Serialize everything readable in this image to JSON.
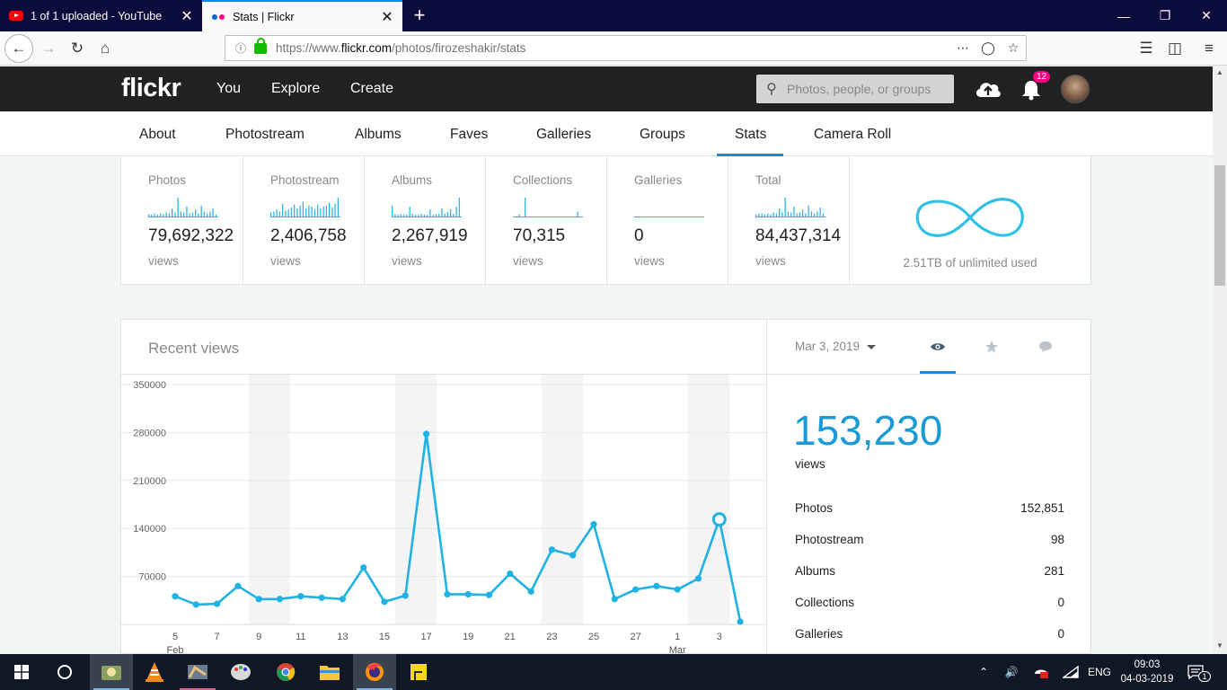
{
  "browser": {
    "tabs": [
      {
        "title": "1 of 1 uploaded - YouTube",
        "active": false
      },
      {
        "title": "Stats | Flickr",
        "active": true
      }
    ],
    "url_prefix": "https://www.",
    "url_domain": "flickr.com",
    "url_path": "/photos/firozeshakir/stats"
  },
  "header": {
    "logo": "flickr",
    "nav": [
      "You",
      "Explore",
      "Create"
    ],
    "search_placeholder": "Photos, people, or groups",
    "notification_count": "12"
  },
  "subnav": {
    "items": [
      "About",
      "Photostream",
      "Albums",
      "Faves",
      "Galleries",
      "Groups",
      "Stats",
      "Camera Roll"
    ],
    "active": "Stats"
  },
  "stats_cards": [
    {
      "label": "Photos",
      "value": "79,692,322",
      "unit": "views",
      "spark": [
        3,
        3,
        4,
        3,
        4,
        3,
        5,
        4,
        9,
        5,
        20,
        6,
        5,
        11,
        4,
        5,
        8,
        4,
        12,
        6,
        4,
        6,
        9,
        3
      ]
    },
    {
      "label": "Photostream",
      "value": "2,406,758",
      "unit": "views",
      "spark": [
        5,
        6,
        8,
        6,
        14,
        7,
        8,
        10,
        13,
        9,
        12,
        16,
        9,
        12,
        11,
        8,
        13,
        9,
        11,
        12,
        15,
        10,
        14,
        20
      ]
    },
    {
      "label": "Albums",
      "value": "2,267,919",
      "unit": "views",
      "spark": [
        13,
        4,
        3,
        4,
        3,
        3,
        12,
        4,
        3,
        3,
        4,
        3,
        3,
        9,
        3,
        4,
        4,
        10,
        4,
        6,
        9,
        4,
        12,
        22
      ]
    },
    {
      "label": "Collections",
      "value": "70,315",
      "unit": "views",
      "spark": [
        0,
        0,
        3,
        0,
        20,
        0,
        0,
        0,
        0,
        0,
        0,
        0,
        0,
        0,
        0,
        0,
        0,
        0,
        0,
        0,
        0,
        0,
        6,
        0
      ]
    },
    {
      "label": "Galleries",
      "value": "0",
      "unit": "views",
      "spark": [
        0,
        0,
        0,
        0,
        0,
        0,
        0,
        0,
        0,
        0,
        0,
        0,
        0,
        0,
        0,
        0,
        0,
        0,
        0,
        0,
        0,
        0,
        0,
        0
      ]
    },
    {
      "label": "Total",
      "value": "84,437,314",
      "unit": "views",
      "spark": [
        3,
        4,
        4,
        3,
        4,
        3,
        5,
        4,
        9,
        5,
        20,
        6,
        5,
        11,
        4,
        5,
        8,
        4,
        12,
        6,
        4,
        6,
        10,
        4
      ]
    }
  ],
  "storage": {
    "text": "2.51TB of unlimited used"
  },
  "recent_views": {
    "title": "Recent views",
    "selected_date": "Mar 3, 2019",
    "total": "153,230",
    "total_unit": "views",
    "breakdown": [
      {
        "label": "Photos",
        "value": "152,851"
      },
      {
        "label": "Photostream",
        "value": "98"
      },
      {
        "label": "Albums",
        "value": "281"
      },
      {
        "label": "Collections",
        "value": "0"
      },
      {
        "label": "Galleries",
        "value": "0"
      }
    ]
  },
  "chart_data": {
    "type": "line",
    "title": "Recent views",
    "y_ticks": [
      "350000",
      "280000",
      "210000",
      "140000",
      "70000"
    ],
    "ylim": [
      0,
      350000
    ],
    "x_tick_labels": [
      "5",
      "7",
      "9",
      "11",
      "13",
      "15",
      "17",
      "19",
      "21",
      "23",
      "25",
      "27",
      "1",
      "3"
    ],
    "x_month_labels": [
      {
        "label": "Feb",
        "at": "5"
      },
      {
        "label": "Mar",
        "at": "1"
      }
    ],
    "x": [
      "Feb 5",
      "Feb 6",
      "Feb 7",
      "Feb 8",
      "Feb 9",
      "Feb 10",
      "Feb 11",
      "Feb 12",
      "Feb 13",
      "Feb 14",
      "Feb 15",
      "Feb 16",
      "Feb 17",
      "Feb 18",
      "Feb 19",
      "Feb 20",
      "Feb 21",
      "Feb 22",
      "Feb 23",
      "Feb 24",
      "Feb 25",
      "Feb 26",
      "Feb 27",
      "Feb 28",
      "Mar 1",
      "Mar 2",
      "Mar 3",
      "Mar 4"
    ],
    "series": [
      {
        "values": [
          41000,
          29000,
          30000,
          56000,
          37000,
          37000,
          41000,
          39000,
          37000,
          83000,
          33000,
          42000,
          278000,
          44000,
          44000,
          43000,
          74000,
          48000,
          109000,
          101000,
          146000,
          37000,
          51000,
          56000,
          51000,
          67000,
          153230,
          4000
        ]
      }
    ],
    "highlighted_index": 26,
    "weekend_bands": [
      "Feb 9-10",
      "Feb 16-17",
      "Feb 23-24",
      "Mar 2-3"
    ],
    "color": "#1fb2e3",
    "grid": true
  },
  "colors": {
    "accent": "#128fdc",
    "line": "#1fb2e3",
    "header_bg": "#212124",
    "badge": "#ff0084"
  },
  "taskbar": {
    "time": "09:03",
    "date": "04-03-2019",
    "lang": "ENG",
    "notif_count": "1"
  }
}
